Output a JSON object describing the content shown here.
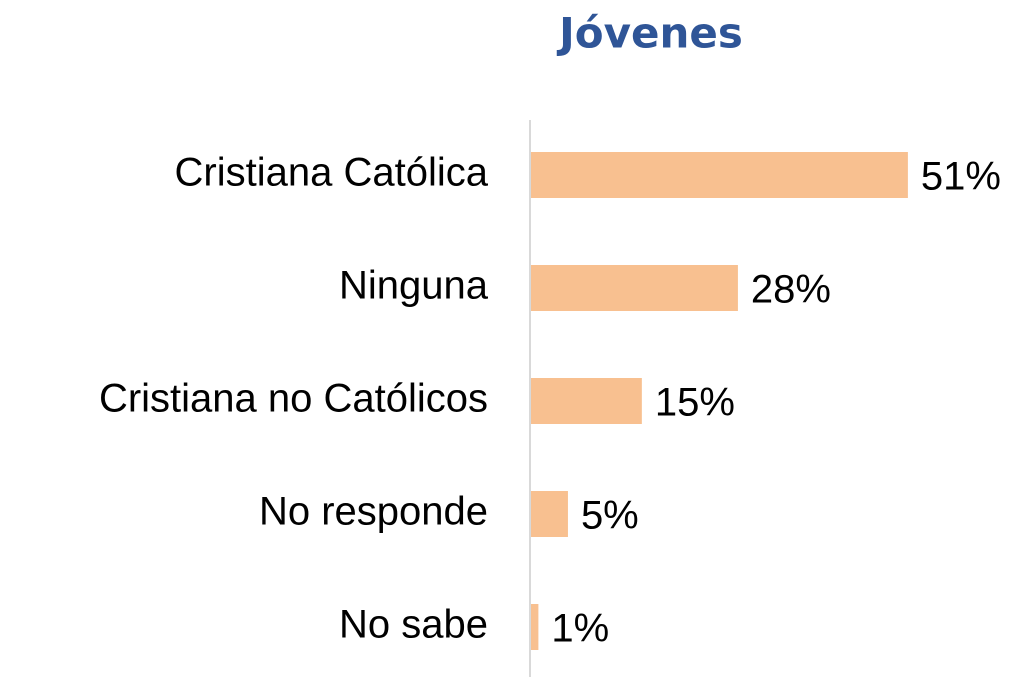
{
  "chart_data": {
    "type": "bar",
    "orientation": "horizontal",
    "title": "Jóvenes",
    "categories": [
      "Cristiana Católica",
      "Ninguna",
      "Cristiana no Católicos",
      "No responde",
      "No sabe"
    ],
    "values": [
      51,
      28,
      15,
      5,
      1
    ],
    "value_labels": [
      "51%",
      "28%",
      "15%",
      "5%",
      "1%"
    ],
    "color": "#f8c090"
  }
}
